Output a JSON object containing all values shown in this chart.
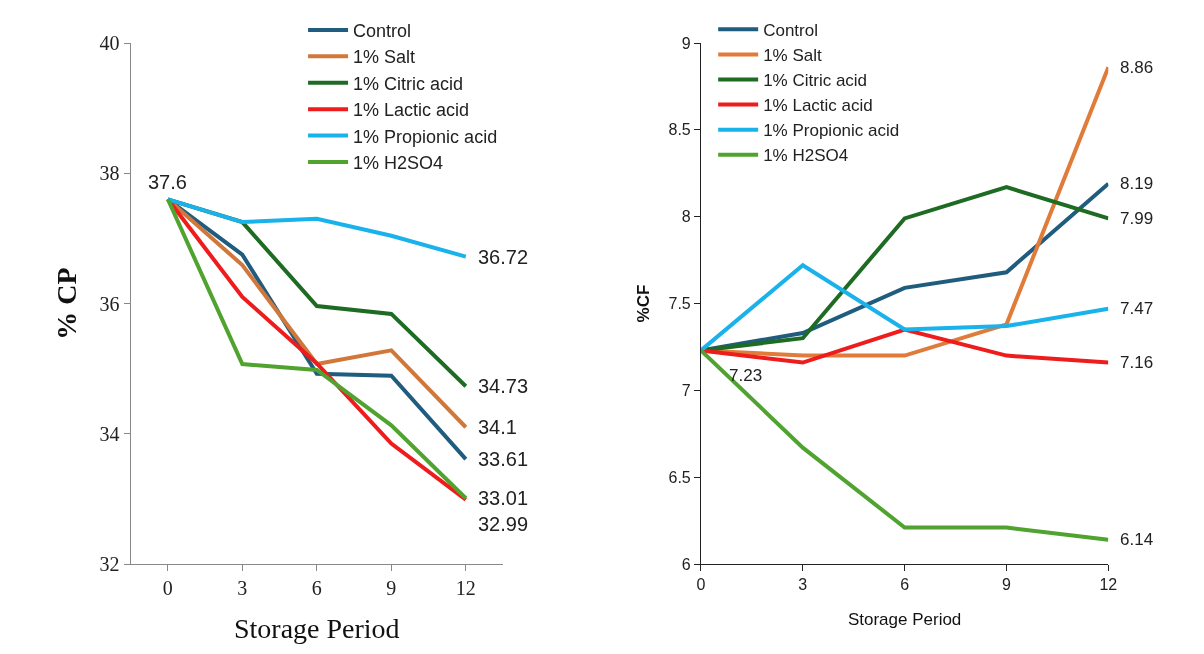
{
  "chart_data": [
    {
      "type": "line",
      "x": [
        0,
        3,
        6,
        9,
        12
      ],
      "xlim": [
        -1.5,
        13.5
      ],
      "xticks": [
        0,
        3,
        6,
        9,
        12
      ],
      "xlabel": "Storage Period",
      "ylabel": "% CP",
      "ylim": [
        32,
        40
      ],
      "yticks": [
        32,
        34,
        36,
        38,
        40
      ],
      "legend": "top right",
      "series": [
        {
          "name": "Control",
          "color": "#1f5c7e",
          "values": [
            37.6,
            36.75,
            34.92,
            34.89,
            33.61
          ],
          "value_labels": [
            "37.6",
            null,
            null,
            null,
            "33.61"
          ]
        },
        {
          "name": "1% Salt",
          "color": "#d2773a",
          "values": [
            37.6,
            36.59,
            35.07,
            35.28,
            34.1
          ],
          "value_labels": [
            null,
            null,
            null,
            null,
            "34.1"
          ]
        },
        {
          "name": "1% Citric acid",
          "color": "#1e6b24",
          "values": [
            37.6,
            37.25,
            35.96,
            35.84,
            34.73
          ],
          "value_labels": [
            null,
            null,
            null,
            null,
            "34.73"
          ]
        },
        {
          "name": "1% Lactic acid",
          "color": "#ee1c1c",
          "values": [
            37.6,
            36.1,
            35.08,
            33.85,
            32.99
          ],
          "value_labels": [
            null,
            null,
            null,
            null,
            "32.99"
          ]
        },
        {
          "name": "1% Propionic acid",
          "color": "#1ab2ea",
          "values": [
            37.6,
            37.25,
            37.3,
            37.04,
            36.72
          ],
          "value_labels": [
            null,
            null,
            null,
            null,
            "36.72"
          ]
        },
        {
          "name": "1% H2SO4",
          "color": "#4fa32e",
          "values": [
            37.6,
            35.07,
            34.98,
            34.13,
            33.01
          ],
          "value_labels": [
            null,
            null,
            null,
            null,
            "33.01"
          ]
        }
      ]
    },
    {
      "type": "line",
      "x": [
        0,
        3,
        6,
        9,
        12
      ],
      "xlabel": "Storage Period",
      "ylabel": "%CF",
      "xlim": [
        0,
        12
      ],
      "xticks": [
        0,
        3,
        6,
        9,
        12
      ],
      "ylim": [
        6,
        9
      ],
      "yticks": [
        6,
        6.5,
        7,
        7.5,
        8,
        8.5,
        9
      ],
      "legend": "top left",
      "series": [
        {
          "name": "Control",
          "color": "#1f5c7e",
          "values": [
            7.23,
            7.33,
            7.59,
            7.68,
            8.19
          ],
          "value_labels": [
            "7.23",
            null,
            null,
            null,
            "8.19"
          ]
        },
        {
          "name": "1% Salt",
          "color": "#e07b39",
          "values": [
            7.23,
            7.2,
            7.2,
            7.38,
            8.86
          ],
          "value_labels": [
            null,
            null,
            null,
            null,
            "8.86"
          ]
        },
        {
          "name": "1% Citric acid",
          "color": "#1e6b24",
          "values": [
            7.23,
            7.3,
            7.99,
            8.17,
            7.99
          ],
          "value_labels": [
            null,
            null,
            null,
            null,
            "7.99"
          ]
        },
        {
          "name": "1% Lactic acid",
          "color": "#ee1c1c",
          "values": [
            7.23,
            7.16,
            7.35,
            7.2,
            7.16
          ],
          "value_labels": [
            null,
            null,
            null,
            null,
            "7.16"
          ]
        },
        {
          "name": "1% Propionic acid",
          "color": "#1ab2ea",
          "values": [
            7.23,
            7.72,
            7.35,
            7.37,
            7.47
          ],
          "value_labels": [
            null,
            null,
            null,
            null,
            "7.47"
          ]
        },
        {
          "name": "1% H2SO4",
          "color": "#4fa32e",
          "values": [
            7.23,
            6.67,
            6.21,
            6.21,
            6.14
          ],
          "value_labels": [
            null,
            null,
            null,
            null,
            "6.14"
          ]
        }
      ]
    }
  ]
}
